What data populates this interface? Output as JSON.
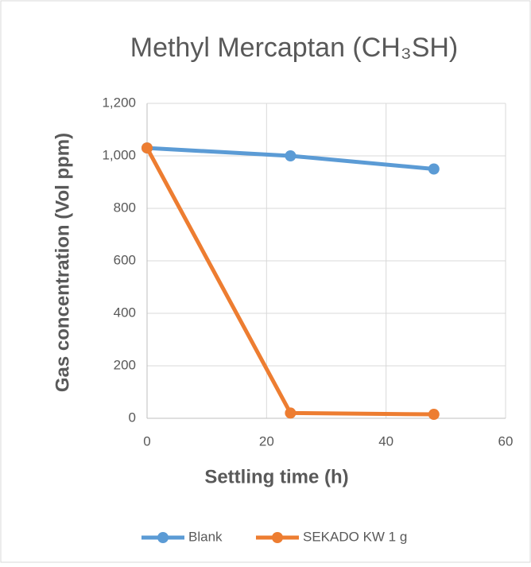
{
  "chart_data": {
    "type": "line",
    "title": "Methyl Mercaptan (CH₃SH)",
    "x_label": "Settling time (h)",
    "y_label": "Gas concentration (Vol ppm)",
    "xlim": [
      0,
      60
    ],
    "xticks": [
      0,
      20,
      40,
      60
    ],
    "ylim": [
      0,
      1200
    ],
    "yticks": [
      0,
      200,
      400,
      600,
      800,
      {
        "value": 1000,
        "label": "1,000"
      },
      {
        "value": 1200,
        "label": "1,200"
      }
    ],
    "grid": true,
    "legend": "bottom",
    "series": [
      {
        "name": "Blank",
        "color": "#5b9bd5",
        "x": [
          0,
          24,
          48
        ],
        "values": [
          1030,
          1000,
          950
        ]
      },
      {
        "name": "SEKADO KW 1 g",
        "color": "#ed7d31",
        "x": [
          0,
          24,
          48
        ],
        "values": [
          1030,
          20,
          15
        ]
      }
    ]
  }
}
